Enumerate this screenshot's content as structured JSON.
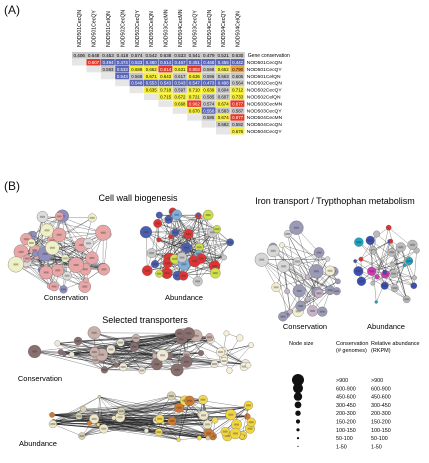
{
  "panels": {
    "a": "(A)",
    "b": "(B)"
  },
  "matrix": {
    "columns": [
      "NOD501CecQN",
      "NOD501CecQY",
      "NOD501CelQN",
      "NOD502CecQN",
      "NOD502CecQY",
      "NOD502CelQN",
      "NOD503CecMN",
      "NOD504CecMN",
      "NOD503CecQY",
      "NOD504CecQN",
      "NOD504CecQY",
      "NOD504CelQN"
    ],
    "rows": [
      "NOD501CecQN",
      "NOD501CecQY",
      "NOD501CelQN",
      "NOD502CecQN",
      "NOD502CecQY",
      "NOD502CelQN",
      "NOD503CecMN",
      "NOD503CecQY",
      "NOD504CecMN",
      "NOD504CecQN",
      "NOD504CecQY"
    ],
    "gene_conservation_label": "Gene conservation",
    "gene_conservation": [
      "0.406",
      "0.648",
      "0.453",
      "0.418",
      "0.574",
      "0.542",
      "0.638",
      "0.533",
      "0.541",
      "0.479",
      "0.521",
      "0.630"
    ],
    "values": [
      [
        "0.807",
        "0.494",
        "0.474",
        "0.533",
        "0.480",
        "0.514",
        "0.467",
        "0.451",
        "0.468",
        "0.455",
        "0.442"
      ],
      [
        "0.593",
        "0.533",
        "0.688",
        "0.662",
        "0.814",
        "0.631",
        "0.803",
        "0.598",
        "0.652",
        "0.790"
      ],
      [
        "0.543",
        "0.568",
        "0.671",
        "0.643",
        "0.617",
        "0.636",
        "0.596",
        "0.563",
        "0.606"
      ],
      [
        "0.548",
        "0.553",
        "0.543",
        "0.543",
        "0.547",
        "0.473",
        "0.498",
        "0.564"
      ],
      [
        "0.635",
        "0.718",
        "0.597",
        "0.710",
        "0.639",
        "0.604",
        "0.712"
      ],
      [
        "0.715",
        "0.672",
        "0.721",
        "0.585",
        "0.607",
        "0.733"
      ],
      [
        "0.668",
        "0.962",
        "0.574",
        "0.674",
        "0.877"
      ],
      [
        "0.670",
        "0.556",
        "0.583",
        "0.587"
      ],
      [
        "0.586",
        "0.674",
        "0.877"
      ],
      [
        "0.582",
        "0.582"
      ],
      [
        "0.676"
      ]
    ],
    "colors": {
      "blue": "#5b67b4",
      "gray": "#c8c8c8",
      "yellow": "#f4ec3c",
      "orange": "#f0a23a",
      "red": "#e53a2a"
    }
  },
  "networks": {
    "cell_wall_title": "Cell wall biogenesis",
    "iron_title": "Iron transport / Trypthophan metabolism",
    "transporters_title": "Selected transporters",
    "conservation_label": "Conservation",
    "abundance_label": "Abundance"
  },
  "legend": {
    "node_size_header": "Node size",
    "conservation_header_line1": "Conservation",
    "conservation_header_line2": "(# genomes)",
    "abundance_header_line1": "Relative abundance",
    "abundance_header_line2": "(RKPM)",
    "rows": [
      {
        "conservation": ">900",
        "abundance": ">900"
      },
      {
        "conservation": "600-900",
        "abundance": "600-900"
      },
      {
        "conservation": "450-600",
        "abundance": "450-600"
      },
      {
        "conservation": "300-450",
        "abundance": "300-450"
      },
      {
        "conservation": "200-300",
        "abundance": "200-300"
      },
      {
        "conservation": "150-200",
        "abundance": "150-200"
      },
      {
        "conservation": "100-150",
        "abundance": "100-150"
      },
      {
        "conservation": "50-100",
        "abundance": "50-100"
      },
      {
        "conservation": "1-50",
        "abundance": "1-50"
      }
    ]
  }
}
